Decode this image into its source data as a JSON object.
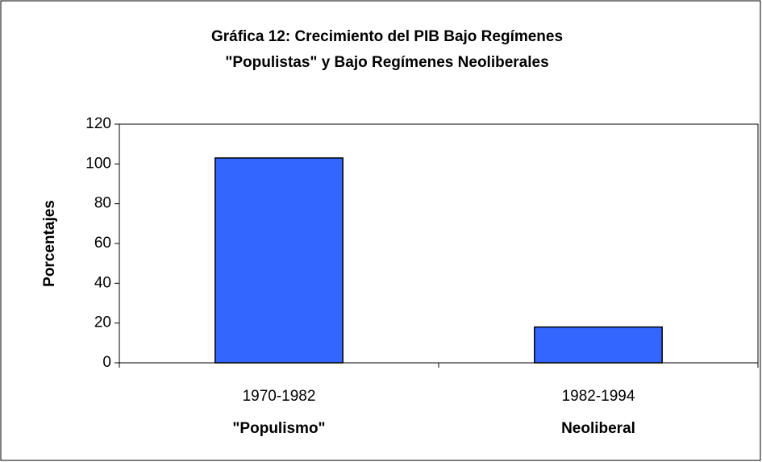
{
  "chart_data": {
    "type": "bar",
    "title": [
      "Gráfica 12: Crecimiento del PIB Bajo Regímenes",
      "\"Populistas\" y Bajo Regímenes Neoliberales"
    ],
    "y_label": "Porcentajes",
    "categories": [
      "1970-1982",
      "1982-1994"
    ],
    "category_groups": [
      "\"Populismo\"",
      "Neoliberal"
    ],
    "values": [
      103,
      18
    ],
    "color": "#3366ff",
    "ylim": [
      0,
      120
    ],
    "yticks": [
      0,
      20,
      40,
      60,
      80,
      100,
      120
    ],
    "grid": false
  }
}
